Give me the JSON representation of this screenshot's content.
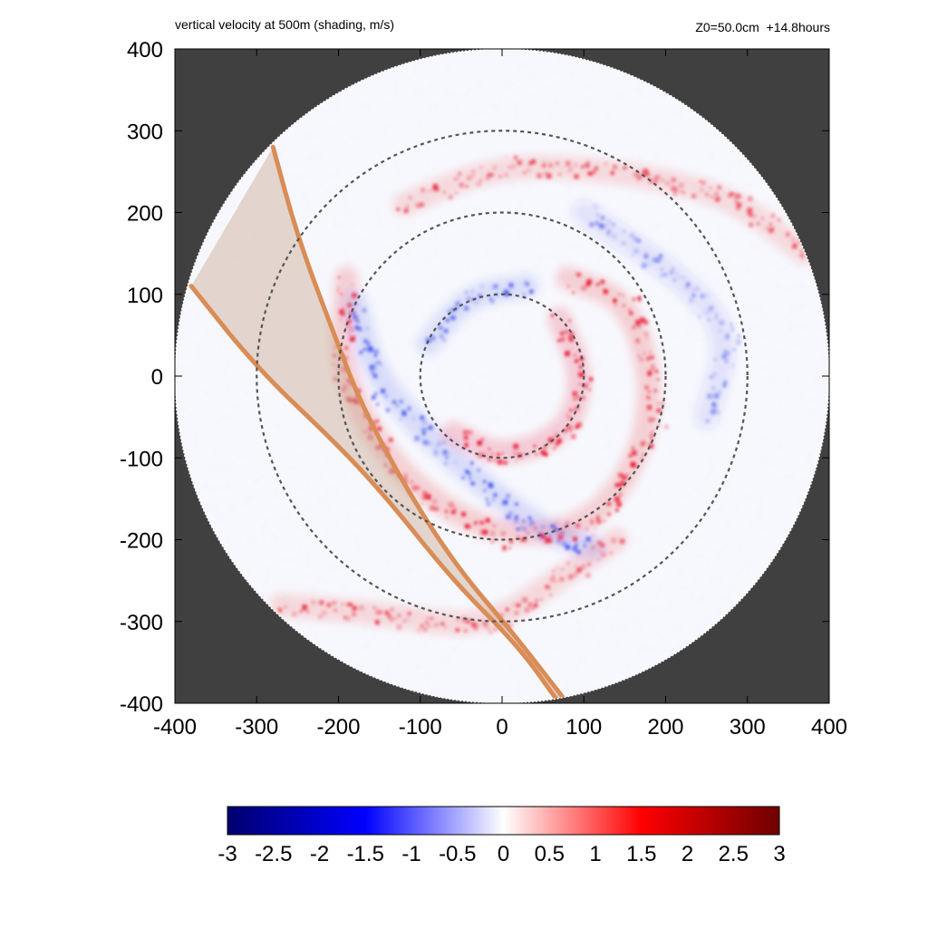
{
  "figure": {
    "title_left": "vertical velocity at 500m (shading, m/s)",
    "title_right": "Z0=50.0cm  +14.8hours"
  },
  "colors": {
    "background_outside_domain": "#404040",
    "disk_fill": "#f7f8fd",
    "positive": "#e8001a",
    "negative": "#2a3ee6",
    "track_line": "#d98c56",
    "track_fill": "#c9a48a",
    "range_rings": "#555555"
  },
  "chart_data": {
    "type": "heatmap",
    "title": "vertical velocity at 500m (shading, m/s)",
    "annotation": "Z0=50.0cm  +14.8hours",
    "xlabel": "",
    "ylabel": "",
    "xlim": [
      -400,
      400
    ],
    "ylim": [
      -400,
      400
    ],
    "xticks": [
      -400,
      -300,
      -200,
      -100,
      0,
      100,
      200,
      300,
      400
    ],
    "yticks": [
      -400,
      -300,
      -200,
      -100,
      0,
      100,
      200,
      300,
      400
    ],
    "xtick_labels": [
      "-400",
      "-300",
      "-200",
      "-100",
      "0",
      "100",
      "200",
      "300",
      "400"
    ],
    "ytick_labels": [
      "-400",
      "-300",
      "-200",
      "-100",
      "0",
      "100",
      "200",
      "300",
      "400"
    ],
    "grid": false,
    "domain_radius": 400,
    "range_rings": [
      100,
      200,
      300
    ],
    "colorbar": {
      "min": -3,
      "max": 3,
      "ticks": [
        -3,
        -2.5,
        -2,
        -1.5,
        -1,
        -0.5,
        0,
        0.5,
        1,
        1.5,
        2,
        2.5,
        3
      ],
      "tick_labels": [
        "-3",
        "-2.5",
        "-2",
        "-1.5",
        "-1",
        "-0.5",
        "0",
        "0.5",
        "1",
        "1.5",
        "2",
        "2.5",
        "3"
      ],
      "colormap": [
        "#00006e",
        "#0000ff",
        "#ffffff",
        "#ff0000",
        "#6e0000"
      ],
      "placement": "bottom"
    },
    "shaded_swath": {
      "upper_edge": [
        [
          -280,
          280
        ],
        [
          -250,
          170
        ],
        [
          -205,
          50
        ],
        [
          -170,
          -40
        ],
        [
          -110,
          -150
        ],
        [
          -50,
          -240
        ],
        [
          10,
          -310
        ],
        [
          80,
          -400
        ]
      ],
      "lower_edge": [
        [
          -380,
          110
        ],
        [
          -300,
          10
        ],
        [
          -200,
          -85
        ],
        [
          -140,
          -150
        ],
        [
          -60,
          -250
        ],
        [
          20,
          -330
        ],
        [
          70,
          -400
        ]
      ]
    },
    "updraft_bands": [
      {
        "arm": "inner",
        "points": [
          [
            70,
            70
          ],
          [
            100,
            0
          ],
          [
            80,
            -70
          ],
          [
            0,
            -100
          ],
          [
            -60,
            -70
          ]
        ],
        "peak": 2.5
      },
      {
        "arm": "middle",
        "points": [
          [
            -190,
            120
          ],
          [
            -200,
            0
          ],
          [
            -120,
            -130
          ],
          [
            0,
            -200
          ],
          [
            120,
            -180
          ],
          [
            190,
            -50
          ],
          [
            160,
            90
          ],
          [
            80,
            120
          ]
        ],
        "peak": 2.0
      },
      {
        "arm": "outer",
        "points": [
          [
            -120,
            210
          ],
          [
            0,
            260
          ],
          [
            150,
            250
          ],
          [
            280,
            220
          ],
          [
            370,
            150
          ]
        ],
        "peak": 1.0
      },
      {
        "arm": "outer-south",
        "points": [
          [
            -270,
            -280
          ],
          [
            -150,
            -290
          ],
          [
            -20,
            -310
          ],
          [
            80,
            -240
          ],
          [
            140,
            -200
          ]
        ],
        "peak": 1.2
      }
    ],
    "downdraft_bands": [
      {
        "arm": "inner",
        "points": [
          [
            30,
            110
          ],
          [
            -40,
            100
          ],
          [
            -90,
            40
          ]
        ],
        "peak": -1.5
      },
      {
        "arm": "middle",
        "points": [
          [
            -180,
            90
          ],
          [
            -150,
            -20
          ],
          [
            30,
            -180
          ],
          [
            110,
            -210
          ]
        ],
        "peak": -1.8
      },
      {
        "arm": "diffuse",
        "points": [
          [
            100,
            200
          ],
          [
            220,
            120
          ],
          [
            280,
            50
          ],
          [
            250,
            -50
          ]
        ],
        "peak": -0.6
      }
    ]
  }
}
